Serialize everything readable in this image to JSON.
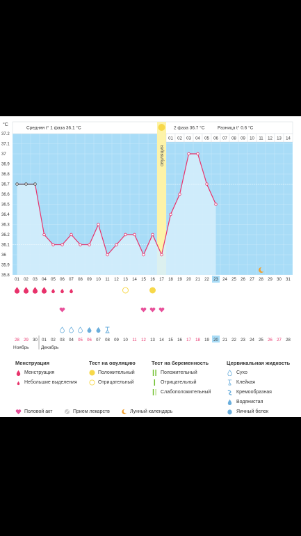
{
  "header": {
    "unit": "°C",
    "phase1": "Средняя t° 1 фаза 36.1 °C",
    "phase2": "2 фаза 36.7 °C",
    "diff": "Разница t° 0.6 °C",
    "ovulation_label": "овуляция"
  },
  "colors": {
    "chart_bg": "#a8dcf7",
    "area_fill": "#d6eefc",
    "line": "#e8326b",
    "ovulation": "#fdf3a8",
    "sun": "#f7d84a",
    "accent_pink": "#e8326b",
    "drop_blue": "#6aaedc"
  },
  "cycle_days": [
    "01",
    "02",
    "03",
    "04",
    "05",
    "06",
    "07",
    "08",
    "09",
    "10",
    "11",
    "12",
    "13",
    "14",
    "15",
    "16",
    "17",
    "18",
    "19",
    "20",
    "21",
    "22",
    "23",
    "24",
    "25",
    "26",
    "27",
    "28",
    "29",
    "30",
    "31"
  ],
  "phase2_header_days": [
    "01",
    "02",
    "03",
    "04",
    "05",
    "06",
    "07",
    "08",
    "09",
    "10",
    "11",
    "12",
    "13",
    "14"
  ],
  "today_cycle_day": "23",
  "calendar_days": [
    "28",
    "29",
    "30",
    "01",
    "02",
    "03",
    "04",
    "05",
    "06",
    "07",
    "08",
    "09",
    "10",
    "11",
    "12",
    "13",
    "14",
    "15",
    "16",
    "17",
    "18",
    "19",
    "20",
    "21",
    "22",
    "23",
    "24",
    "25",
    "26",
    "27",
    "28"
  ],
  "weekend_flags": [
    1,
    1,
    0,
    0,
    0,
    0,
    0,
    1,
    1,
    0,
    0,
    0,
    0,
    1,
    1,
    0,
    0,
    0,
    0,
    1,
    1,
    0,
    0,
    0,
    0,
    0,
    0,
    0,
    1,
    1,
    0
  ],
  "today_calendar_day": "20",
  "months": [
    "Ноябрь",
    "Декабрь"
  ],
  "chart_data": {
    "type": "line",
    "ylabel": "°C",
    "ylim": [
      35.8,
      37.2
    ],
    "y_ticks": [
      "37.2",
      "37.1",
      "37",
      "36.9",
      "36.8",
      "36.7",
      "36.6",
      "36.5",
      "36.4",
      "36.3",
      "36.2",
      "36.1",
      "36",
      "35.9",
      "35.8"
    ],
    "x": [
      1,
      2,
      3,
      4,
      5,
      6,
      7,
      8,
      9,
      10,
      11,
      12,
      13,
      14,
      15,
      16,
      17,
      18,
      19,
      20,
      21,
      22,
      23
    ],
    "values": [
      36.7,
      36.7,
      36.7,
      36.2,
      36.1,
      36.1,
      36.2,
      36.1,
      36.1,
      36.3,
      36.0,
      36.1,
      36.2,
      36.2,
      36.0,
      36.2,
      36.0,
      36.4,
      36.6,
      37.0,
      37.0,
      36.7,
      36.5
    ],
    "ovulation_day": 17,
    "phase1_avg": 36.1,
    "phase2_avg": 36.7
  },
  "markers": {
    "menstruation_big": [
      1,
      2,
      3,
      4
    ],
    "menstruation_small": [
      5,
      6,
      7
    ],
    "ovulation_test_negative": [
      13
    ],
    "ovulation_test_positive": [
      16
    ],
    "intercourse": [
      6,
      15,
      16,
      17
    ],
    "cervical_dry": [
      6,
      7,
      8
    ],
    "cervical_watery": [
      9,
      10
    ],
    "cervical_sticky": [
      11
    ],
    "moon_day": 28
  },
  "legend": {
    "menstruation": {
      "title": "Менструация",
      "items": [
        "Менструация",
        "Небольшие выделения"
      ]
    },
    "ovulation_test": {
      "title": "Тест на овуляцию",
      "items": [
        "Положительный",
        "Отрицательный"
      ]
    },
    "pregnancy_test": {
      "title": "Тест на беременность",
      "items": [
        "Положительный",
        "Отрицательный",
        "Слабоположительный"
      ]
    },
    "cervical": {
      "title": "Цервикальная жидкость",
      "items": [
        "Сухо",
        "Клейкая",
        "Кремообразная",
        "Водянистая",
        "Яичный белок"
      ]
    },
    "other": [
      "Половой акт",
      "Прием лекарств",
      "Лунный календарь"
    ]
  }
}
